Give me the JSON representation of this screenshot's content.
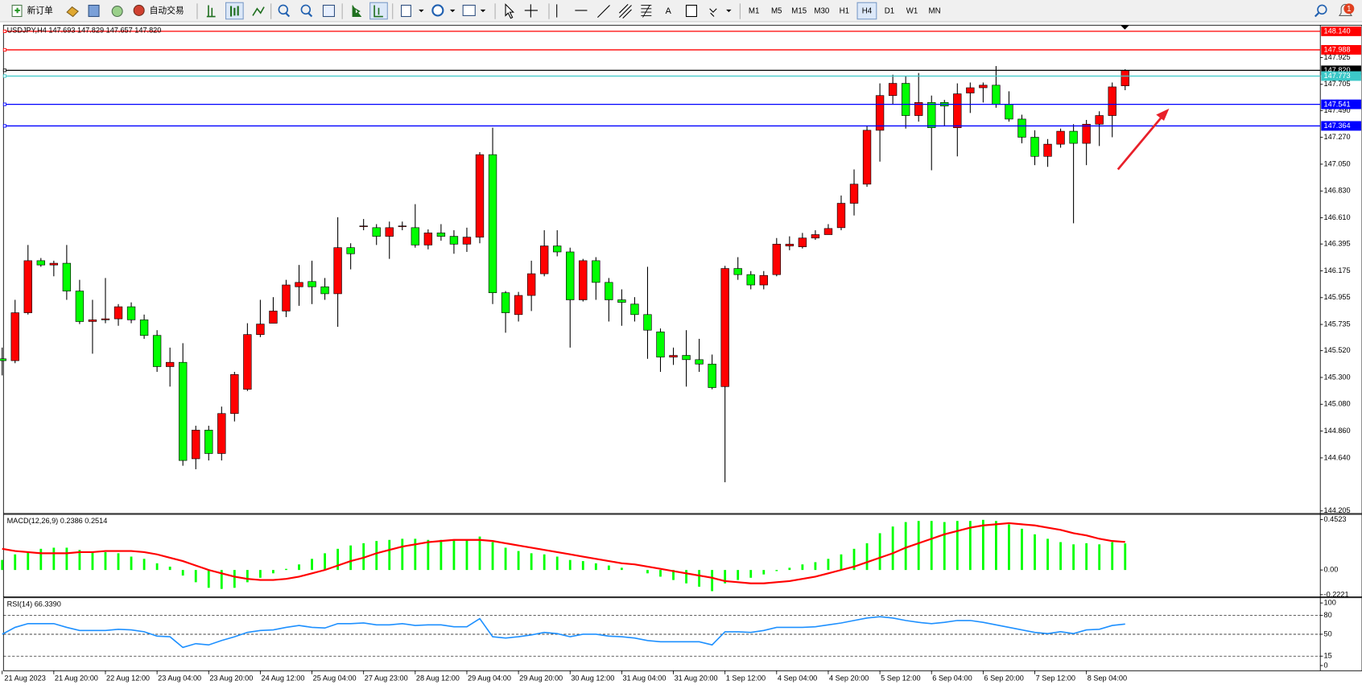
{
  "toolbar": {
    "new_order": "新订单",
    "auto_trading": "自动交易",
    "timeframes": [
      "M1",
      "M5",
      "M15",
      "M30",
      "H1",
      "H4",
      "D1",
      "W1",
      "MN"
    ],
    "active_timeframe": "H4",
    "notifications": 1
  },
  "chart_data": [
    {
      "type": "candlestick",
      "title": "USDJPY,H4  147.693 147.829 147.657 147.820",
      "categories": [
        "21 Aug 2023",
        null,
        null,
        null,
        "21 Aug 20:00",
        null,
        null,
        null,
        "22 Aug 12:00",
        null,
        null,
        null,
        "23 Aug 04:00",
        null,
        null,
        null,
        "23 Aug 20:00",
        null,
        null,
        null,
        "24 Aug 12:00",
        null,
        null,
        null,
        "25 Aug 04:00",
        null,
        null,
        null,
        "27 Aug 23:00",
        null,
        null,
        null,
        "28 Aug 12:00",
        null,
        null,
        null,
        "29 Aug 04:00",
        null,
        null,
        null,
        "29 Aug 20:00",
        null,
        null,
        null,
        "30 Aug 12:00",
        null,
        null,
        null,
        "31 Aug 04:00",
        null,
        null,
        null,
        "31 Aug 20:00",
        null,
        null,
        null,
        "1 Sep 12:00",
        null,
        null,
        null,
        "4 Sep 04:00",
        null,
        null,
        null,
        "4 Sep 20:00",
        null,
        null,
        null,
        "5 Sep 12:00",
        null,
        null,
        null,
        "6 Sep 04:00",
        null,
        null,
        null,
        "6 Sep 20:00",
        null,
        null,
        null,
        "7 Sep 12:00",
        null,
        null,
        null,
        "8 Sep 04:00",
        null,
        null,
        null
      ],
      "open": [
        145.453,
        145.438,
        145.831,
        146.258,
        146.223,
        146.237,
        146.009,
        145.759,
        145.773,
        145.781,
        145.88,
        145.773,
        145.645,
        145.389,
        145.424,
        144.633,
        144.868,
        144.676,
        145.004,
        145.203,
        145.652,
        145.745,
        145.845,
        146.044,
        146.087,
        146.044,
        145.987,
        146.365,
        146.543,
        146.529,
        146.458,
        146.543,
        146.529,
        146.387,
        146.486,
        146.458,
        146.394,
        146.451,
        147.128,
        145.995,
        145.816,
        145.973,
        146.151,
        146.379,
        146.33,
        145.937,
        146.258,
        146.08,
        145.937,
        145.902,
        145.816,
        145.674,
        145.467,
        145.481,
        145.446,
        145.41,
        145.225,
        146.194,
        146.144,
        146.059,
        146.144,
        146.379,
        146.372,
        146.444,
        146.472,
        146.529,
        146.729,
        146.886,
        147.328,
        147.613,
        147.713,
        147.449,
        147.556,
        147.556,
        147.349,
        147.634,
        147.677,
        147.698,
        147.542,
        147.42,
        147.271,
        147.114,
        147.214,
        147.32,
        147.221,
        147.378,
        147.449,
        147.693
      ],
      "high": [
        145.545,
        145.937,
        146.387,
        146.28,
        146.258,
        146.387,
        146.101,
        145.937,
        146.116,
        145.902,
        145.916,
        145.816,
        145.688,
        145.545,
        145.581,
        144.904,
        144.904,
        145.061,
        145.346,
        145.745,
        145.937,
        145.959,
        146.101,
        146.223,
        146.258,
        146.116,
        146.615,
        146.401,
        146.6,
        146.558,
        146.579,
        146.579,
        146.722,
        146.515,
        146.558,
        146.508,
        146.529,
        147.149,
        147.349,
        146.009,
        146.002,
        146.258,
        146.508,
        146.508,
        146.365,
        146.273,
        146.287,
        146.116,
        146.023,
        145.959,
        146.208,
        145.702,
        145.545,
        145.688,
        145.617,
        145.488,
        146.216,
        146.287,
        146.173,
        146.173,
        146.444,
        146.458,
        146.486,
        146.508,
        146.558,
        146.793,
        147.007,
        147.363,
        147.713,
        147.784,
        147.77,
        147.798,
        147.613,
        147.577,
        147.713,
        147.72,
        147.72,
        147.855,
        147.648,
        147.456,
        147.328,
        147.256,
        147.342,
        147.378,
        147.413,
        147.484,
        147.72,
        147.829
      ],
      "low": [
        145.317,
        145.417,
        145.816,
        146.208,
        146.13,
        145.937,
        145.738,
        145.495,
        145.745,
        145.724,
        145.745,
        145.617,
        145.346,
        145.225,
        144.576,
        144.547,
        144.619,
        144.619,
        144.939,
        145.189,
        145.631,
        145.745,
        145.795,
        145.888,
        145.902,
        145.937,
        145.716,
        146.187,
        146.508,
        146.387,
        146.273,
        146.508,
        146.365,
        146.351,
        146.422,
        146.315,
        146.33,
        146.401,
        145.902,
        145.667,
        145.759,
        145.845,
        146.13,
        146.294,
        145.545,
        145.923,
        145.937,
        145.759,
        145.724,
        145.759,
        145.453,
        145.346,
        145.403,
        145.225,
        145.346,
        145.203,
        144.44,
        146.101,
        146.023,
        146.023,
        146.13,
        146.344,
        146.358,
        146.429,
        146.472,
        146.508,
        146.629,
        146.864,
        147.071,
        147.542,
        147.342,
        147.399,
        147.0,
        147.363,
        147.114,
        147.47,
        147.556,
        147.513,
        147.399,
        147.221,
        147.042,
        147.028,
        147.185,
        146.565,
        147.042,
        147.199,
        147.271,
        147.657
      ],
      "close": [
        145.438,
        145.831,
        146.258,
        146.223,
        146.237,
        146.009,
        145.759,
        145.773,
        145.781,
        145.88,
        145.773,
        145.645,
        145.389,
        145.424,
        144.619,
        144.868,
        144.676,
        145.004,
        145.324,
        145.652,
        145.738,
        145.845,
        146.059,
        146.08,
        146.044,
        145.987,
        146.365,
        146.315,
        146.543,
        146.458,
        146.529,
        146.543,
        146.387,
        146.486,
        146.458,
        146.394,
        146.451,
        147.128,
        145.995,
        145.831,
        145.973,
        146.151,
        146.379,
        146.33,
        145.937,
        146.258,
        146.08,
        145.937,
        145.916,
        145.816,
        145.688,
        145.467,
        145.481,
        145.446,
        145.41,
        145.217,
        146.194,
        146.144,
        146.059,
        146.137,
        146.394,
        146.394,
        146.444,
        146.472,
        146.522,
        146.729,
        146.886,
        147.328,
        147.613,
        147.713,
        147.449,
        147.556,
        147.349,
        147.527,
        147.627,
        147.677,
        147.698,
        147.542,
        147.42,
        147.271,
        147.114,
        147.214,
        147.32,
        147.221,
        147.378,
        147.449,
        147.684,
        147.82
      ],
      "up_color": "#ff0000",
      "down_color": "#00ff00",
      "wick_color": "#000000",
      "ylim": [
        144.191,
        148.176
      ],
      "yticks": [
        147.925,
        147.705,
        {
          "value": 147.49,
          "label": "147.490"
        },
        {
          "value": 147.27,
          "label": "147.270"
        },
        {
          "value": 147.05,
          "label": "147.050"
        },
        {
          "value": 146.83,
          "label": "146.830"
        },
        {
          "value": 146.61,
          "label": "146.610"
        },
        146.395,
        146.175,
        145.955,
        145.735,
        {
          "value": 145.52,
          "label": "145.520"
        },
        {
          "value": 145.3,
          "label": "145.300"
        },
        {
          "value": 145.08,
          "label": "145.080"
        },
        {
          "value": 144.86,
          "label": "144.860"
        },
        {
          "value": 144.64,
          "label": "144.640"
        },
        144.205
      ],
      "hlines": [
        {
          "value": 148.14,
          "label": "148.140",
          "color": "#ff0000"
        },
        {
          "value": 147.988,
          "label": "147.988",
          "color": "#ff0000"
        },
        {
          "value": 147.82,
          "label": "147.820",
          "color": "#000000"
        },
        {
          "value": 147.773,
          "label": "147.773",
          "color": "#3cc8c8"
        },
        {
          "value": 147.541,
          "label": "147.541",
          "color": "#0000ff"
        },
        {
          "value": 147.364,
          "label": "147.364",
          "color": "#0000ff"
        }
      ],
      "grid": false
    },
    {
      "type": "macd",
      "title": "MACD(12,26,9) 0.2386 0.2514",
      "values": [
        0.09,
        0.14,
        0.16,
        0.19,
        0.2,
        0.2,
        0.18,
        0.16,
        0.16,
        0.15,
        0.12,
        0.1,
        0.06,
        0.03,
        -0.05,
        -0.11,
        -0.16,
        -0.17,
        -0.16,
        -0.11,
        -0.07,
        -0.03,
        0.01,
        0.05,
        0.1,
        0.15,
        0.19,
        0.22,
        0.24,
        0.26,
        0.27,
        0.28,
        0.28,
        0.27,
        0.27,
        0.27,
        0.27,
        0.3,
        0.25,
        0.2,
        0.17,
        0.15,
        0.14,
        0.12,
        0.09,
        0.08,
        0.06,
        0.04,
        0.02,
        0.0,
        -0.03,
        -0.06,
        -0.09,
        -0.12,
        -0.15,
        -0.19,
        -0.12,
        -0.09,
        -0.07,
        -0.04,
        -0.01,
        0.02,
        0.05,
        0.07,
        0.1,
        0.14,
        0.19,
        0.24,
        0.33,
        0.39,
        0.43,
        0.44,
        0.44,
        0.43,
        0.44,
        0.44,
        0.45,
        0.44,
        0.41,
        0.37,
        0.32,
        0.28,
        0.25,
        0.23,
        0.24,
        0.23,
        0.25,
        0.2386
      ],
      "signal": [
        0.19,
        0.17,
        0.16,
        0.15,
        0.15,
        0.15,
        0.16,
        0.16,
        0.17,
        0.17,
        0.17,
        0.16,
        0.14,
        0.11,
        0.08,
        0.04,
        0.0,
        -0.03,
        -0.06,
        -0.08,
        -0.09,
        -0.09,
        -0.08,
        -0.06,
        -0.03,
        0.0,
        0.04,
        0.08,
        0.11,
        0.15,
        0.18,
        0.21,
        0.23,
        0.25,
        0.26,
        0.27,
        0.27,
        0.27,
        0.26,
        0.24,
        0.22,
        0.2,
        0.18,
        0.16,
        0.14,
        0.12,
        0.1,
        0.08,
        0.06,
        0.05,
        0.03,
        0.01,
        -0.01,
        -0.03,
        -0.05,
        -0.07,
        -0.1,
        -0.11,
        -0.12,
        -0.12,
        -0.11,
        -0.1,
        -0.08,
        -0.06,
        -0.03,
        0.0,
        0.03,
        0.07,
        0.11,
        0.15,
        0.2,
        0.24,
        0.28,
        0.32,
        0.35,
        0.38,
        0.4,
        0.41,
        0.42,
        0.41,
        0.4,
        0.38,
        0.36,
        0.33,
        0.31,
        0.28,
        0.26,
        0.2514
      ],
      "color": "#00ff00",
      "signal_color": "#ff0000",
      "ylim": [
        -0.2416,
        0.4913
      ],
      "yticks": [
        0.4523,
        {
          "value": 0,
          "label": "0.00"
        },
        -0.2221
      ]
    },
    {
      "type": "line",
      "title": "RSI(14) 66.3390",
      "values": [
        50,
        61,
        67,
        67,
        67,
        61,
        56,
        56,
        56,
        58,
        57,
        54,
        47,
        46,
        29,
        35,
        33,
        40,
        46,
        53,
        56,
        57,
        61,
        64,
        61,
        60,
        67,
        67,
        68,
        65,
        65,
        67,
        64,
        65,
        65,
        62,
        62,
        75,
        46,
        44,
        46,
        49,
        53,
        51,
        46,
        50,
        50,
        47,
        46,
        44,
        40,
        38,
        38,
        38,
        38,
        33,
        54,
        54,
        53,
        56,
        61,
        61,
        61,
        62,
        65,
        68,
        72,
        76,
        78,
        76,
        72,
        69,
        67,
        69,
        72,
        72,
        69,
        65,
        61,
        57,
        53,
        51,
        54,
        51,
        57,
        58,
        64,
        66.339
      ],
      "color": "#1e90ff",
      "levels": [
        80,
        50,
        15
      ],
      "ylim": [
        -8.3,
        106.9
      ],
      "yticks": [
        100,
        80,
        50,
        15,
        0
      ]
    }
  ]
}
